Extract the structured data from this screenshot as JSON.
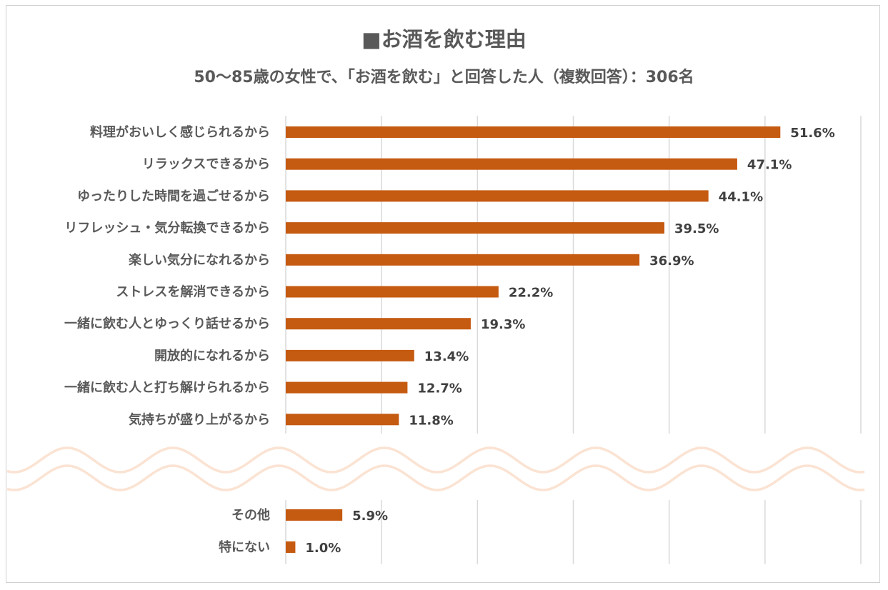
{
  "chart_data": {
    "type": "bar",
    "orientation": "horizontal",
    "title": "■お酒を飲む理由",
    "subtitle": "50～85歳の女性で、「お酒を飲む」と回答した人（複数回答）：306名",
    "categories": [
      "料理がおいしく感じられるから",
      "リラックスできるから",
      "ゆったりした時間を過ごせるから",
      "リフレッシュ・気分転換できるから",
      "楽しい気分になれるから",
      "ストレスを解消できるから",
      "一緒に飲む人とゆっくり話せるから",
      "開放的になれるから",
      "一緒に飲む人と打ち解けられるから",
      "気持ちが盛り上がるから",
      "その他",
      "特にない"
    ],
    "values": [
      51.6,
      47.1,
      44.1,
      39.5,
      36.9,
      22.2,
      19.3,
      13.4,
      12.7,
      11.8,
      5.9,
      1.0
    ],
    "data_labels": [
      "51.6%",
      "47.1%",
      "44.1%",
      "39.5%",
      "36.9%",
      "22.2%",
      "19.3%",
      "13.4%",
      "12.7%",
      "11.8%",
      "5.9%",
      "1.0%"
    ],
    "unit": "%",
    "xlim": [
      0,
      60
    ],
    "grid": true,
    "axis_break": "wave between 気持ちが盛り上がるから and その他",
    "colors": {
      "bar": "#c55a11",
      "grid": "#d9d9d9",
      "wave": "#fbe3d3",
      "text": "#595959"
    }
  }
}
